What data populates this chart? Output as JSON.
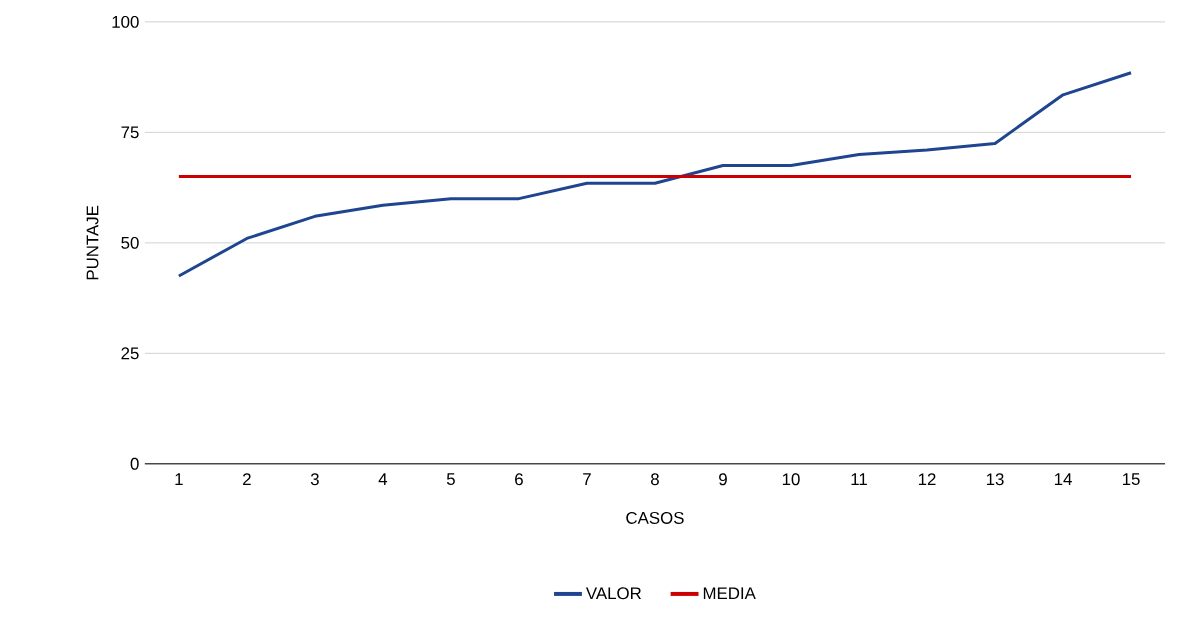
{
  "chart_data": {
    "type": "line",
    "xlabel": "CASOS",
    "ylabel": "PUNTAJE",
    "categories": [
      "1",
      "2",
      "3",
      "4",
      "5",
      "6",
      "7",
      "8",
      "9",
      "10",
      "11",
      "12",
      "13",
      "14",
      "15"
    ],
    "series": [
      {
        "name": "VALOR",
        "color": "#1f4590",
        "values": [
          42.5,
          51,
          56,
          58.5,
          60,
          60,
          63.5,
          63.5,
          67.5,
          67.5,
          70,
          71,
          72.5,
          83.5,
          88.5
        ]
      },
      {
        "name": "MEDIA",
        "color": "#cc0000",
        "values": [
          65,
          65,
          65,
          65,
          65,
          65,
          65,
          65,
          65,
          65,
          65,
          65,
          65,
          65,
          65
        ]
      }
    ],
    "ylim": [
      0,
      100
    ],
    "yticks": [
      0,
      25,
      50,
      75,
      100
    ],
    "grid": "y",
    "legend": "bottom",
    "marker": "none",
    "line_style": "solid"
  }
}
